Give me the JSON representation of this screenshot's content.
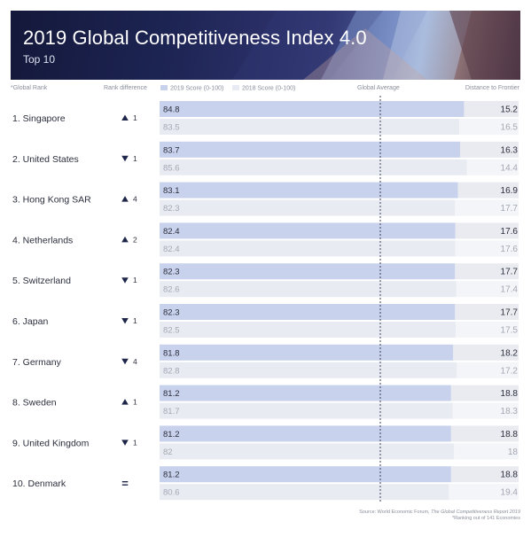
{
  "header": {
    "title": "2019 Global Competitiveness Index 4.0",
    "subtitle": "Top 10"
  },
  "columns": {
    "rank": "*Global Rank",
    "rank_diff": "Rank difference",
    "score_2019": "2019 Score (0-100)",
    "score_2018": "2018 Score (0-100)",
    "global_average": "Global Average",
    "distance": "Distance to Frontier"
  },
  "colors": {
    "bar_2019": "#c8d2ec",
    "bar_2018": "#e8ebf2",
    "dist_2019": "#e9ebf0",
    "dist_2018": "#f4f5f8",
    "arrow": "#1d2548",
    "dashed_line": "#3a3f55"
  },
  "chart_data": {
    "type": "bar",
    "title": "2019 Global Competitiveness Index 4.0",
    "subtitle": "Top 10",
    "xlim": [
      0,
      100
    ],
    "categories": [
      "1. Singapore",
      "2. United States",
      "3. Hong Kong SAR",
      "4. Netherlands",
      "5. Switzerland",
      "6. Japan",
      "7. Germany",
      "8. Sweden",
      "9. United Kingdom",
      "10. Denmark"
    ],
    "rank_change": [
      {
        "dir": "up",
        "value": "1"
      },
      {
        "dir": "down",
        "value": "1"
      },
      {
        "dir": "up",
        "value": "4"
      },
      {
        "dir": "up",
        "value": "2"
      },
      {
        "dir": "down",
        "value": "1"
      },
      {
        "dir": "down",
        "value": "1"
      },
      {
        "dir": "down",
        "value": "4"
      },
      {
        "dir": "up",
        "value": "1"
      },
      {
        "dir": "down",
        "value": "1"
      },
      {
        "dir": "same",
        "value": "="
      }
    ],
    "series": [
      {
        "name": "2019 Score (0-100)",
        "values": [
          "84.8",
          "83.7",
          "83.1",
          "82.4",
          "82.3",
          "82.3",
          "81.8",
          "81.2",
          "81.2",
          "81.2"
        ],
        "distance": [
          "15.2",
          "16.3",
          "16.9",
          "17.6",
          "17.7",
          "17.7",
          "18.2",
          "18.8",
          "18.8",
          "18.8"
        ]
      },
      {
        "name": "2018 Score (0-100)",
        "values": [
          "83.5",
          "85.6",
          "82.3",
          "82.4",
          "82.6",
          "82.5",
          "82.8",
          "81.7",
          "82",
          "80.6"
        ],
        "distance": [
          "16.5",
          "14.4",
          "17.7",
          "17.6",
          "17.4",
          "17.5",
          "17.2",
          "18.3",
          "18",
          "19.4"
        ]
      }
    ],
    "global_average_label": "Global Average"
  },
  "footer": {
    "source_prefix": "Source:  World Economic Forum, ",
    "source_title": "The Global Competitiveness Report 2019",
    "note": "*Ranking out of 141 Economies"
  }
}
